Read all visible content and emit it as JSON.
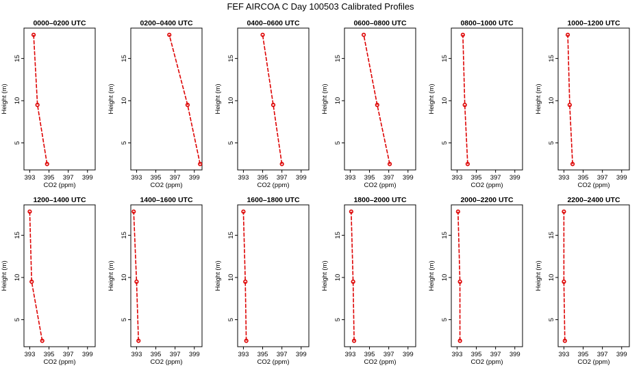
{
  "title": "FEF AIRCOA C  Day 100503  Calibrated Profiles",
  "colors": {
    "series": "#dd0000",
    "axes": "#000000"
  },
  "chart_data": [
    {
      "type": "line",
      "title": "0000–0200 UTC",
      "xlabel": "CO2 (ppm)",
      "ylabel": "Height (m)",
      "xlim": [
        392.4,
        399.8
      ],
      "ylim": [
        1.8,
        18.6
      ],
      "xticks": [
        393,
        395,
        397,
        399
      ],
      "yticks": [
        5,
        10,
        15
      ],
      "points": [
        {
          "x": 394.8,
          "y": 2.5
        },
        {
          "x": 393.8,
          "y": 9.5
        },
        {
          "x": 393.4,
          "y": 17.8
        }
      ]
    },
    {
      "type": "line",
      "title": "0200–0400 UTC",
      "xlabel": "CO2 (ppm)",
      "ylabel": "Height (m)",
      "xlim": [
        392.4,
        399.8
      ],
      "ylim": [
        1.8,
        18.6
      ],
      "xticks": [
        393,
        395,
        397,
        399
      ],
      "yticks": [
        5,
        10,
        15
      ],
      "points": [
        {
          "x": 399.6,
          "y": 2.5
        },
        {
          "x": 398.3,
          "y": 9.5
        },
        {
          "x": 396.4,
          "y": 17.8
        }
      ]
    },
    {
      "type": "line",
      "title": "0400–0600 UTC",
      "xlabel": "CO2 (ppm)",
      "ylabel": "Height (m)",
      "xlim": [
        392.4,
        399.8
      ],
      "ylim": [
        1.8,
        18.6
      ],
      "xticks": [
        393,
        395,
        397,
        399
      ],
      "yticks": [
        5,
        10,
        15
      ],
      "points": [
        {
          "x": 397.0,
          "y": 2.5
        },
        {
          "x": 396.1,
          "y": 9.5
        },
        {
          "x": 395.0,
          "y": 17.8
        }
      ]
    },
    {
      "type": "line",
      "title": "0600–0800 UTC",
      "xlabel": "CO2 (ppm)",
      "ylabel": "Height (m)",
      "xlim": [
        392.4,
        399.8
      ],
      "ylim": [
        1.8,
        18.6
      ],
      "xticks": [
        393,
        395,
        397,
        399
      ],
      "yticks": [
        5,
        10,
        15
      ],
      "points": [
        {
          "x": 397.1,
          "y": 2.5
        },
        {
          "x": 395.8,
          "y": 9.5
        },
        {
          "x": 394.4,
          "y": 17.8
        }
      ]
    },
    {
      "type": "line",
      "title": "0800–1000 UTC",
      "xlabel": "CO2 (ppm)",
      "ylabel": "Height (m)",
      "xlim": [
        392.4,
        399.8
      ],
      "ylim": [
        1.8,
        18.6
      ],
      "xticks": [
        393,
        395,
        397,
        399
      ],
      "yticks": [
        5,
        10,
        15
      ],
      "points": [
        {
          "x": 394.1,
          "y": 2.5
        },
        {
          "x": 393.8,
          "y": 9.5
        },
        {
          "x": 393.6,
          "y": 17.8
        }
      ]
    },
    {
      "type": "line",
      "title": "1000–1200 UTC",
      "xlabel": "CO2 (ppm)",
      "ylabel": "Height (m)",
      "xlim": [
        392.4,
        399.8
      ],
      "ylim": [
        1.8,
        18.6
      ],
      "xticks": [
        393,
        395,
        397,
        399
      ],
      "yticks": [
        5,
        10,
        15
      ],
      "points": [
        {
          "x": 393.9,
          "y": 2.5
        },
        {
          "x": 393.6,
          "y": 9.5
        },
        {
          "x": 393.4,
          "y": 17.8
        }
      ]
    },
    {
      "type": "line",
      "title": "1200–1400 UTC",
      "xlabel": "CO2 (ppm)",
      "ylabel": "Height (m)",
      "xlim": [
        392.4,
        399.8
      ],
      "ylim": [
        1.8,
        18.6
      ],
      "xticks": [
        393,
        395,
        397,
        399
      ],
      "yticks": [
        5,
        10,
        15
      ],
      "points": [
        {
          "x": 394.3,
          "y": 2.5
        },
        {
          "x": 393.2,
          "y": 9.5
        },
        {
          "x": 393.0,
          "y": 17.8
        }
      ]
    },
    {
      "type": "line",
      "title": "1400–1600 UTC",
      "xlabel": "CO2 (ppm)",
      "ylabel": "Height (m)",
      "xlim": [
        392.4,
        399.8
      ],
      "ylim": [
        1.8,
        18.6
      ],
      "xticks": [
        393,
        395,
        397,
        399
      ],
      "yticks": [
        5,
        10,
        15
      ],
      "points": [
        {
          "x": 393.2,
          "y": 2.5
        },
        {
          "x": 393.0,
          "y": 9.5
        },
        {
          "x": 392.7,
          "y": 17.8
        }
      ]
    },
    {
      "type": "line",
      "title": "1600–1800 UTC",
      "xlabel": "CO2 (ppm)",
      "ylabel": "Height (m)",
      "xlim": [
        392.4,
        399.8
      ],
      "ylim": [
        1.8,
        18.6
      ],
      "xticks": [
        393,
        395,
        397,
        399
      ],
      "yticks": [
        5,
        10,
        15
      ],
      "points": [
        {
          "x": 393.3,
          "y": 2.5
        },
        {
          "x": 393.2,
          "y": 9.5
        },
        {
          "x": 393.0,
          "y": 17.8
        }
      ]
    },
    {
      "type": "line",
      "title": "1800–2000 UTC",
      "xlabel": "CO2 (ppm)",
      "ylabel": "Height (m)",
      "xlim": [
        392.4,
        399.8
      ],
      "ylim": [
        1.8,
        18.6
      ],
      "xticks": [
        393,
        395,
        397,
        399
      ],
      "yticks": [
        5,
        10,
        15
      ],
      "points": [
        {
          "x": 393.4,
          "y": 2.5
        },
        {
          "x": 393.3,
          "y": 9.5
        },
        {
          "x": 393.1,
          "y": 17.8
        }
      ]
    },
    {
      "type": "line",
      "title": "2000–2200 UTC",
      "xlabel": "CO2 (ppm)",
      "ylabel": "Height (m)",
      "xlim": [
        392.4,
        399.8
      ],
      "ylim": [
        1.8,
        18.6
      ],
      "xticks": [
        393,
        395,
        397,
        399
      ],
      "yticks": [
        5,
        10,
        15
      ],
      "points": [
        {
          "x": 393.3,
          "y": 2.5
        },
        {
          "x": 393.3,
          "y": 9.5
        },
        {
          "x": 393.1,
          "y": 17.8
        }
      ]
    },
    {
      "type": "line",
      "title": "2200–2400 UTC",
      "xlabel": "CO2 (ppm)",
      "ylabel": "Height (m)",
      "xlim": [
        392.4,
        399.8
      ],
      "ylim": [
        1.8,
        18.6
      ],
      "xticks": [
        393,
        395,
        397,
        399
      ],
      "yticks": [
        5,
        10,
        15
      ],
      "points": [
        {
          "x": 393.1,
          "y": 2.5
        },
        {
          "x": 393.0,
          "y": 9.5
        },
        {
          "x": 393.0,
          "y": 17.8
        }
      ]
    }
  ]
}
